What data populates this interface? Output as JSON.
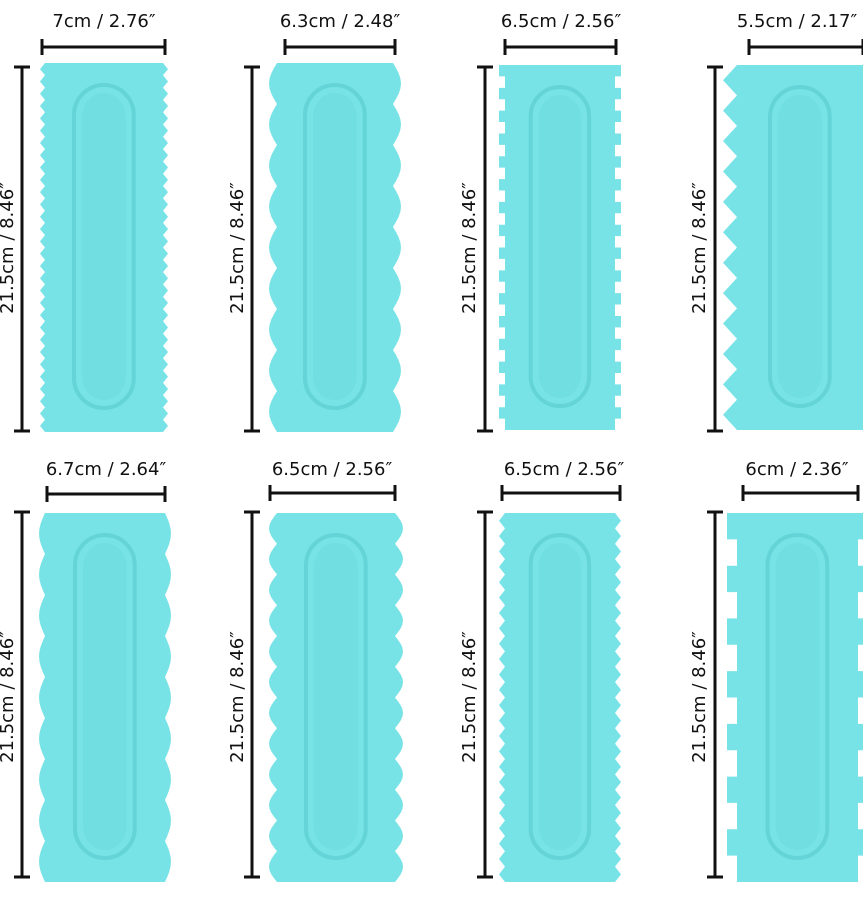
{
  "scrapers": [
    {
      "width_label": "7cm / 2.76″",
      "height_label": "21.5cm / 8.46″",
      "edge": "sawtooth",
      "color": "#77E3E6"
    },
    {
      "width_label": "6.3cm / 2.48″",
      "height_label": "21.5cm / 8.46″",
      "edge": "wavy",
      "color": "#77E3E6"
    },
    {
      "width_label": "6.5cm / 2.56″",
      "height_label": "21.5cm / 8.46″",
      "edge": "square-teeth",
      "color": "#77E3E6"
    },
    {
      "width_label": "5.5cm / 2.17″",
      "height_label": "21.5cm / 8.46″",
      "edge": "large-spikes",
      "color": "#77E3E6"
    },
    {
      "width_label": "6.7cm / 2.64″",
      "height_label": "21.5cm / 8.46″",
      "edge": "scalloped",
      "color": "#77E3E6"
    },
    {
      "width_label": "6.5cm / 2.56″",
      "height_label": "21.5cm / 8.46″",
      "edge": "deep-scallop",
      "color": "#77E3E6"
    },
    {
      "width_label": "6.5cm / 2.56″",
      "height_label": "21.5cm / 8.46″",
      "edge": "fine-teeth",
      "color": "#77E3E6"
    },
    {
      "width_label": "6cm / 2.36″",
      "height_label": "21.5cm / 8.46″",
      "edge": "castle-notch",
      "color": "#77E3E6"
    }
  ],
  "colors": {
    "scraper": "#77E3E6",
    "scraper_dark": "#5ECFD3",
    "dimension_line": "#111111"
  }
}
